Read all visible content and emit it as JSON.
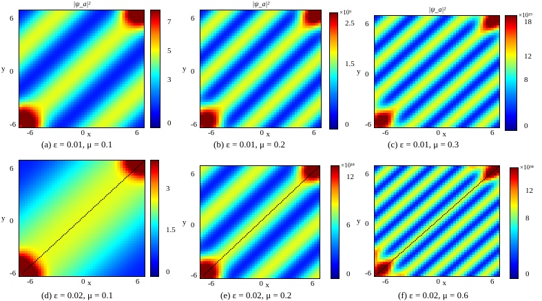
{
  "chart_data": [
    {
      "type": "heatmap",
      "title": "|ψ_a|²",
      "caption": "(a) ε = 0.01, μ = 0.1",
      "xlabel": "x",
      "ylabel": "y",
      "x_ticks": [
        "-6",
        "0",
        "6"
      ],
      "y_ticks": [
        "6",
        "0",
        "-6"
      ],
      "colorbar_multiplier": "",
      "colorbar_ticks": [
        "7",
        "5",
        "3",
        "0"
      ],
      "colorbar_values": [
        7,
        5,
        3,
        0
      ],
      "colorbar_range": [
        0,
        8.2
      ],
      "stripes": 3,
      "hotspots": true,
      "trajectory": false
    },
    {
      "type": "heatmap",
      "title": "|ψ_a|²",
      "caption": "(b) ε = 0.01, μ = 0.2",
      "xlabel": "x",
      "ylabel": "y",
      "x_ticks": [
        "-6",
        "0",
        "6"
      ],
      "y_ticks": [
        "6",
        "0",
        "-6"
      ],
      "colorbar_multiplier": "×10⁹",
      "colorbar_ticks": [
        "2.5",
        "1.5",
        "0"
      ],
      "colorbar_values": [
        2.5,
        1.5,
        0
      ],
      "colorbar_range": [
        0,
        2.9
      ],
      "stripes": 5,
      "hotspots": true,
      "trajectory": false
    },
    {
      "type": "heatmap",
      "title": "|ψ_a|²",
      "caption": "(c) ε = 0.01, μ = 0.3",
      "xlabel": "x",
      "ylabel": "y",
      "x_ticks": [
        "-6",
        "0",
        "6"
      ],
      "y_ticks": [
        "6",
        "0",
        "-6"
      ],
      "colorbar_multiplier": "×10¹⁹",
      "colorbar_ticks": [
        "18",
        "12",
        "8",
        "0"
      ],
      "colorbar_values": [
        18,
        12,
        8,
        0
      ],
      "colorbar_range": [
        0,
        20
      ],
      "stripes": 7,
      "hotspots": true,
      "trajectory": false
    },
    {
      "type": "heatmap",
      "title": "",
      "caption": "(d) ε = 0.02, μ = 0.1",
      "xlabel": "x",
      "ylabel": "y",
      "x_ticks": [
        "-6",
        "0",
        "6"
      ],
      "y_ticks": [
        "6",
        "0",
        "-6"
      ],
      "colorbar_multiplier": "",
      "colorbar_ticks": [
        "3",
        "1.5",
        "0"
      ],
      "colorbar_values": [
        3,
        1.5,
        0
      ],
      "colorbar_range": [
        0,
        4.2
      ],
      "stripes": 1,
      "hotspots": true,
      "trajectory": true
    },
    {
      "type": "heatmap",
      "title": "",
      "caption": "(e) ε = 0.02, μ = 0.2",
      "xlabel": "x",
      "ylabel": "y",
      "x_ticks": [
        "-6",
        "0",
        "6"
      ],
      "y_ticks": [
        "6",
        "0",
        "-6"
      ],
      "colorbar_multiplier": "×10¹⁸",
      "colorbar_ticks": [
        "12",
        "6",
        "0"
      ],
      "colorbar_values": [
        12,
        6,
        0
      ],
      "colorbar_range": [
        0,
        14
      ],
      "stripes": 4,
      "hotspots": true,
      "trajectory": true
    },
    {
      "type": "heatmap",
      "title": "",
      "caption": "(f) ε = 0.02, μ = 0.6",
      "xlabel": "x",
      "ylabel": "y",
      "x_ticks": [
        "-6",
        "0",
        "6"
      ],
      "y_ticks": [
        "6",
        "0",
        "-6"
      ],
      "colorbar_multiplier": "×10³⁴",
      "colorbar_ticks": [
        "12",
        "8",
        "0"
      ],
      "colorbar_values": [
        12,
        8,
        0
      ],
      "colorbar_range": [
        0,
        16
      ],
      "stripes": 9,
      "hotspots": true,
      "trajectory": true
    }
  ]
}
